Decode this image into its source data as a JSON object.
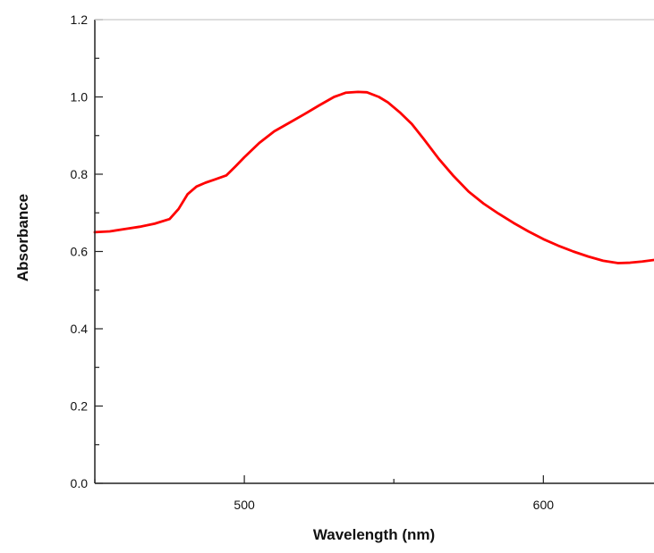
{
  "chart_data": {
    "type": "line",
    "title": "",
    "xlabel": "Wavelength (nm)",
    "ylabel": "Absorbance",
    "xlim": [
      450,
      637
    ],
    "ylim": [
      0.0,
      1.2
    ],
    "x_ticks": [
      500,
      600
    ],
    "x_tick_labels": [
      "500",
      "600"
    ],
    "y_ticks": [
      0.0,
      0.2,
      0.4,
      0.6,
      0.8,
      1.0,
      1.2
    ],
    "y_tick_labels": [
      "0.0",
      "0.2",
      "0.4",
      "0.6",
      "0.8",
      "1.0",
      "1.2"
    ],
    "grid": false,
    "legend": "none",
    "series": [
      {
        "color": "#ff0000",
        "x": [
          450,
          455,
          460,
          465,
          470,
          475,
          478,
          481,
          484,
          487,
          490,
          494,
          497,
          500,
          505,
          510,
          515,
          520,
          525,
          530,
          534,
          538,
          541,
          545,
          548,
          552,
          556,
          560,
          565,
          570,
          575,
          580,
          585,
          590,
          595,
          600,
          605,
          610,
          615,
          620,
          625,
          629,
          633,
          637
        ],
        "y": [
          0.65,
          0.652,
          0.658,
          0.664,
          0.672,
          0.684,
          0.71,
          0.748,
          0.768,
          0.778,
          0.786,
          0.797,
          0.82,
          0.844,
          0.881,
          0.911,
          0.933,
          0.955,
          0.978,
          1.0,
          1.011,
          1.013,
          1.012,
          1.0,
          0.986,
          0.96,
          0.93,
          0.891,
          0.84,
          0.795,
          0.755,
          0.724,
          0.698,
          0.674,
          0.652,
          0.632,
          0.615,
          0.6,
          0.587,
          0.576,
          0.57,
          0.571,
          0.574,
          0.578
        ]
      }
    ]
  }
}
